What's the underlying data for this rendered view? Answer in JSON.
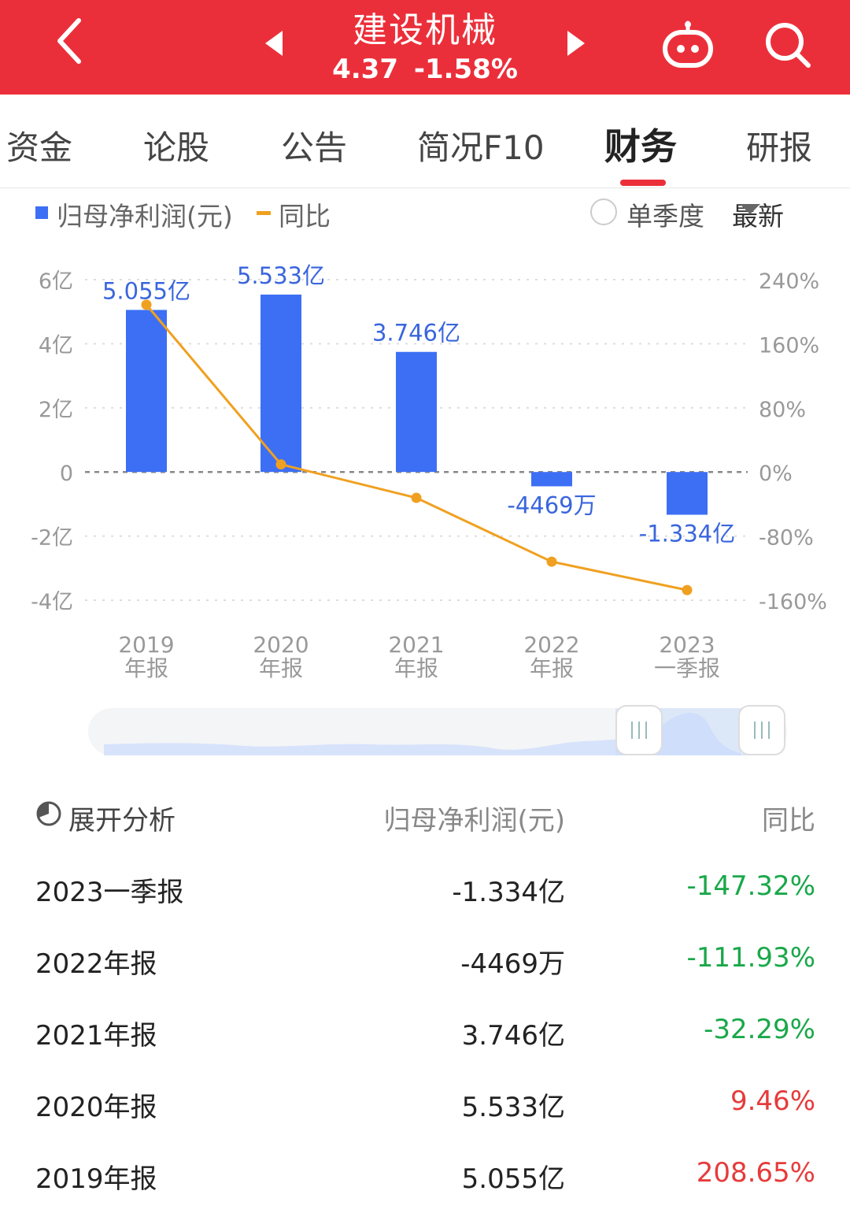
{
  "header": {
    "title": "建设机械",
    "price": "4.37",
    "change_pct": "-1.58%",
    "bg_color": "#eb2f3a",
    "back_icon": "chevron-left-icon",
    "prev_icon": "triangle-left-icon",
    "next_icon": "triangle-right-icon",
    "robot_icon": "robot-icon",
    "search_icon": "search-icon"
  },
  "tabs": [
    {
      "label": "资金",
      "active": false
    },
    {
      "label": "论股",
      "active": false
    },
    {
      "label": "公告",
      "active": false
    },
    {
      "label": "简况F10",
      "active": false
    },
    {
      "label": "财务",
      "active": true
    },
    {
      "label": "研报",
      "active": false
    }
  ],
  "legend": {
    "bar_label": "归母净利润(元)",
    "line_label": "同比",
    "quarter_toggle_label": "单季度",
    "sort_label": "最新"
  },
  "chart_data": {
    "type": "bar",
    "categories": [
      [
        "2019",
        "年报"
      ],
      [
        "2020",
        "年报"
      ],
      [
        "2021",
        "年报"
      ],
      [
        "2022",
        "年报"
      ],
      [
        "2023",
        "一季报"
      ]
    ],
    "series": [
      {
        "name": "归母净利润(元)",
        "type": "bar",
        "values": [
          5.055,
          5.533,
          3.746,
          -0.4469,
          -1.334
        ],
        "unit": "亿",
        "labels": [
          "5.055亿",
          "5.533亿",
          "3.746亿",
          "-4469万",
          "-1.334亿"
        ],
        "color": "#3d6ff5"
      },
      {
        "name": "同比",
        "type": "line",
        "values": [
          208.65,
          9.46,
          -32.29,
          -111.93,
          -147.32
        ],
        "unit": "%",
        "color": "#f0a020"
      }
    ],
    "y_left": {
      "ylim": [
        -4,
        6
      ],
      "ticks": [
        6,
        4,
        2,
        0,
        -2,
        -4
      ],
      "tick_labels": [
        "6亿",
        "4亿",
        "2亿",
        "0",
        "-2亿",
        "-4亿"
      ]
    },
    "y_right": {
      "ylim": [
        -160,
        240
      ],
      "ticks": [
        240,
        160,
        80,
        0,
        -80,
        -160
      ],
      "tick_labels": [
        "240%",
        "160%",
        "80%",
        "0%",
        "-80%",
        "-160%"
      ]
    },
    "grid": true
  },
  "table": {
    "headers": {
      "analysis": "展开分析",
      "value": "归母净利润(元)",
      "yoy": "同比"
    },
    "rows": [
      {
        "period": "2023一季报",
        "value": "-1.334亿",
        "yoy": "-147.32%",
        "color": "#1aa84a"
      },
      {
        "period": "2022年报",
        "value": "-4469万",
        "yoy": "-111.93%",
        "color": "#1aa84a"
      },
      {
        "period": "2021年报",
        "value": "3.746亿",
        "yoy": "-32.29%",
        "color": "#1aa84a"
      },
      {
        "period": "2020年报",
        "value": "5.533亿",
        "yoy": "9.46%",
        "color": "#e63b3b"
      },
      {
        "period": "2019年报",
        "value": "5.055亿",
        "yoy": "208.65%",
        "color": "#e63b3b"
      }
    ]
  }
}
